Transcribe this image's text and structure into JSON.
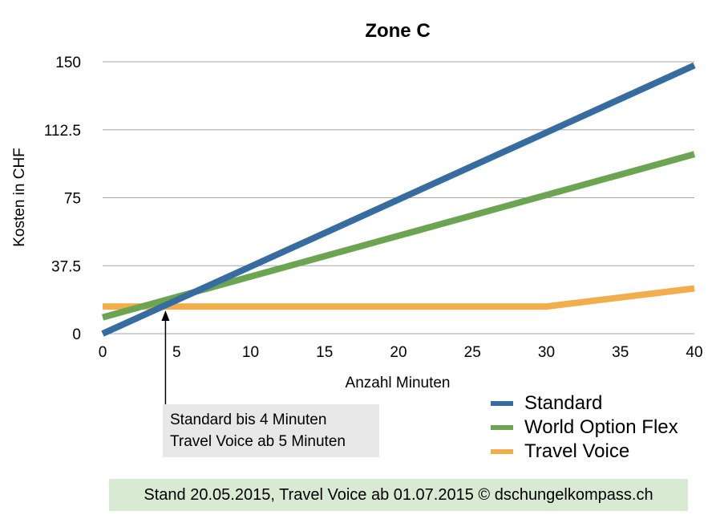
{
  "chart_data": {
    "type": "line",
    "title": "Zone C",
    "xlabel": "Anzahl Minuten",
    "ylabel": "Kosten in CHF",
    "xlim": [
      0,
      40
    ],
    "ylim": [
      0,
      150
    ],
    "xticks": [
      "0",
      "5",
      "10",
      "15",
      "20",
      "25",
      "30",
      "35",
      "40"
    ],
    "yticks": [
      "0",
      "37.5",
      "75",
      "112.5",
      "150"
    ],
    "grid": "horizontal",
    "legend_position": "bottom-right",
    "series": [
      {
        "name": "Standard",
        "color": "#366c9f",
        "points": [
          [
            0,
            0
          ],
          [
            40,
            148
          ]
        ]
      },
      {
        "name": "World Option Flex",
        "color": "#6ca552",
        "points": [
          [
            0,
            9
          ],
          [
            40,
            99
          ]
        ]
      },
      {
        "name": "Travel Voice",
        "color": "#f2ad4d",
        "points": [
          [
            0,
            15
          ],
          [
            30,
            15
          ],
          [
            40,
            25
          ]
        ]
      }
    ],
    "annotation": {
      "arrow_x": 4.25,
      "lines": [
        "Standard bis 4 Minuten",
        "Travel Voice ab 5 Minuten"
      ]
    }
  },
  "footer": "Stand 20.05.2015, Travel Voice ab 01.07.2015 © dschungelkompass.ch"
}
